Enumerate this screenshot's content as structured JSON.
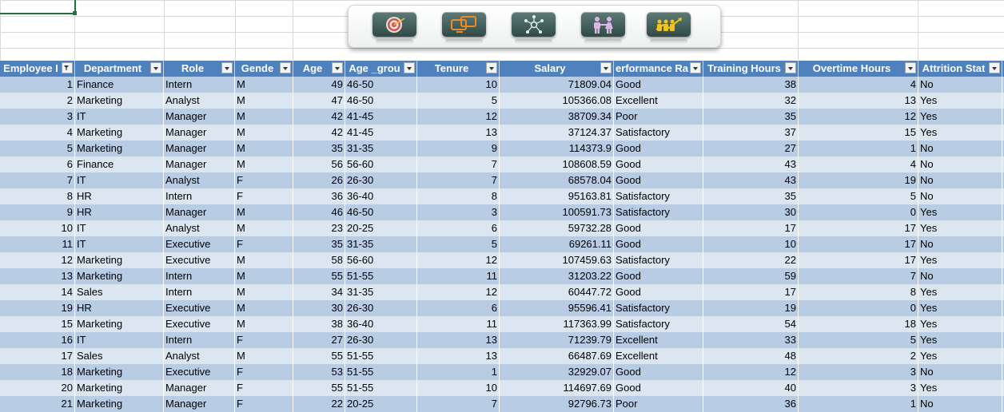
{
  "toolbar": {
    "buttons": [
      {
        "name": "target-button",
        "icon": "target-icon"
      },
      {
        "name": "monitors-button",
        "icon": "monitors-icon"
      },
      {
        "name": "network-button",
        "icon": "network-icon"
      },
      {
        "name": "people-button",
        "icon": "people-icon"
      },
      {
        "name": "team-growth-button",
        "icon": "team-growth-icon"
      }
    ]
  },
  "table": {
    "headers": [
      "Employee I",
      "Department",
      "Role",
      "Gende",
      "Age",
      "Age _grou",
      "Tenure",
      "Salary",
      "erformance Ra",
      "Training Hours",
      "Overtime Hours",
      "Attrition Stat"
    ],
    "rows": [
      [
        "1",
        "Finance",
        "Intern",
        "M",
        "49",
        "46-50",
        "10",
        "71809.04",
        "Good",
        "38",
        "4",
        "No"
      ],
      [
        "2",
        "Marketing",
        "Analyst",
        "M",
        "47",
        "46-50",
        "5",
        "105366.08",
        "Excellent",
        "32",
        "13",
        "Yes"
      ],
      [
        "3",
        "IT",
        "Manager",
        "M",
        "42",
        "41-45",
        "12",
        "38709.34",
        "Poor",
        "35",
        "12",
        "Yes"
      ],
      [
        "4",
        "Marketing",
        "Manager",
        "M",
        "42",
        "41-45",
        "13",
        "37124.37",
        "Satisfactory",
        "37",
        "15",
        "Yes"
      ],
      [
        "5",
        "Marketing",
        "Manager",
        "M",
        "35",
        "31-35",
        "9",
        "114373.9",
        "Good",
        "27",
        "1",
        "No"
      ],
      [
        "6",
        "Finance",
        "Manager",
        "M",
        "56",
        "56-60",
        "7",
        "108608.59",
        "Good",
        "43",
        "4",
        "No"
      ],
      [
        "7",
        "IT",
        "Analyst",
        "F",
        "26",
        "26-30",
        "7",
        "68578.04",
        "Good",
        "43",
        "19",
        "No"
      ],
      [
        "8",
        "HR",
        "Intern",
        "F",
        "36",
        "36-40",
        "8",
        "95163.81",
        "Satisfactory",
        "35",
        "5",
        "No"
      ],
      [
        "9",
        "HR",
        "Manager",
        "M",
        "46",
        "46-50",
        "3",
        "100591.73",
        "Satisfactory",
        "30",
        "0",
        "Yes"
      ],
      [
        "10",
        "IT",
        "Analyst",
        "M",
        "23",
        "20-25",
        "6",
        "59732.28",
        "Good",
        "17",
        "17",
        "Yes"
      ],
      [
        "11",
        "IT",
        "Executive",
        "F",
        "35",
        "31-35",
        "5",
        "69261.11",
        "Good",
        "10",
        "17",
        "No"
      ],
      [
        "12",
        "Marketing",
        "Executive",
        "M",
        "58",
        "56-60",
        "12",
        "107459.63",
        "Satisfactory",
        "22",
        "17",
        "Yes"
      ],
      [
        "13",
        "Marketing",
        "Intern",
        "M",
        "55",
        "51-55",
        "11",
        "31203.22",
        "Good",
        "59",
        "7",
        "No"
      ],
      [
        "14",
        "Sales",
        "Intern",
        "M",
        "34",
        "31-35",
        "12",
        "60447.72",
        "Good",
        "17",
        "8",
        "Yes"
      ],
      [
        "19",
        "HR",
        "Executive",
        "M",
        "30",
        "26-30",
        "6",
        "95596.41",
        "Satisfactory",
        "19",
        "0",
        "Yes"
      ],
      [
        "15",
        "Marketing",
        "Executive",
        "M",
        "38",
        "36-40",
        "11",
        "117363.99",
        "Satisfactory",
        "54",
        "18",
        "Yes"
      ],
      [
        "16",
        "IT",
        "Intern",
        "F",
        "27",
        "26-30",
        "13",
        "71239.79",
        "Excellent",
        "33",
        "5",
        "Yes"
      ],
      [
        "17",
        "Sales",
        "Analyst",
        "M",
        "55",
        "51-55",
        "13",
        "66487.69",
        "Excellent",
        "48",
        "2",
        "Yes"
      ],
      [
        "18",
        "Marketing",
        "Executive",
        "F",
        "53",
        "51-55",
        "1",
        "32929.07",
        "Good",
        "12",
        "3",
        "No"
      ],
      [
        "20",
        "Marketing",
        "Manager",
        "F",
        "55",
        "51-55",
        "10",
        "114697.69",
        "Good",
        "40",
        "3",
        "Yes"
      ],
      [
        "21",
        "Marketing",
        "Manager",
        "F",
        "22",
        "20-25",
        "7",
        "92796.73",
        "Poor",
        "36",
        "1",
        "No"
      ]
    ]
  },
  "colors": {
    "header": "#4f81bd",
    "band_dark": "#b8cce4",
    "band_light": "#dce6f1",
    "selection": "#217346"
  }
}
